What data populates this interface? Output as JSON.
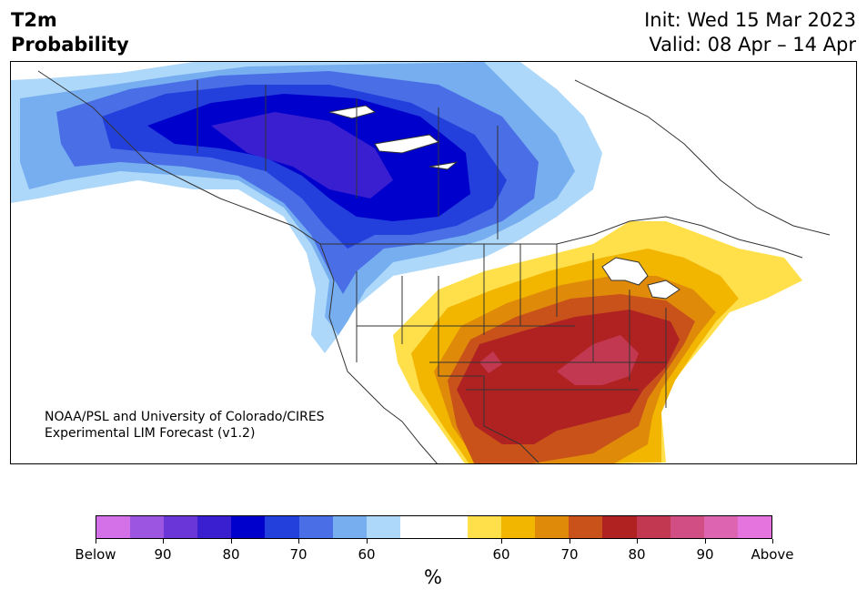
{
  "title": {
    "left_line1": "T2m",
    "left_line2": "Probability",
    "init": "Init: Wed 15 Mar 2023",
    "valid": "Valid: 08 Apr – 14 Apr"
  },
  "credit": {
    "line1": "NOAA/PSL and University of Colorado/CIRES",
    "line2": "Experimental LIM Forecast (v1.2)"
  },
  "colorbar": {
    "unit": "%",
    "colors": [
      "#d471e8",
      "#9b55e0",
      "#6a36d8",
      "#3a1fd0",
      "#0000cc",
      "#2340dc",
      "#4a6ee6",
      "#76aef0",
      "#aed8fa",
      "#ffffff",
      "#ffffff",
      "#ffe04a",
      "#f2b600",
      "#e08a0a",
      "#c8521a",
      "#b02222",
      "#c23850",
      "#d04e84",
      "#dc64b0",
      "#e674de"
    ],
    "ticks": [
      {
        "label": "Below",
        "index": 0
      },
      {
        "label": "90",
        "index": 2
      },
      {
        "label": "80",
        "index": 4
      },
      {
        "label": "70",
        "index": 6
      },
      {
        "label": "60",
        "index": 8
      },
      {
        "label": "60",
        "index": 12
      },
      {
        "label": "70",
        "index": 14
      },
      {
        "label": "80",
        "index": 16
      },
      {
        "label": "90",
        "index": 18
      },
      {
        "label": "Above",
        "index": 20
      }
    ]
  },
  "map": {
    "colors": {
      "cold_light": "#aed8fa",
      "cold_mid": "#76aef0",
      "cold_blue": "#4a6ee6",
      "cold_strong": "#2340dc",
      "cold_deep": "#0000cc",
      "cold_core": "#3a1fd0",
      "warm_yellow": "#ffe04a",
      "warm_gold": "#f2b600",
      "warm_orange": "#e08a0a",
      "warm_rust": "#c8521a",
      "warm_red": "#b02222",
      "warm_rose": "#c23850",
      "line": "#333333"
    }
  }
}
